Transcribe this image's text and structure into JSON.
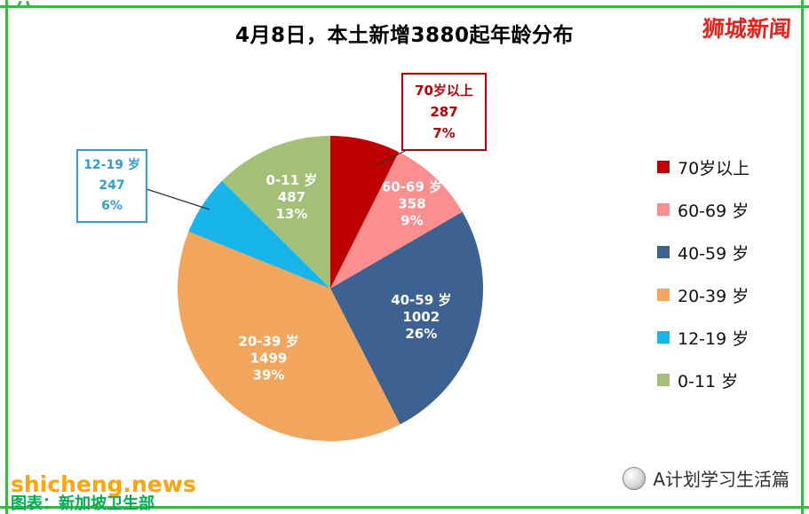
{
  "header": {
    "title": "4月8日，本土新增3880起年龄分布",
    "logo": "狮城新闻"
  },
  "chart_data": {
    "type": "pie",
    "title": "4月8日，本土新增3880起年龄分布",
    "total": 3880,
    "legend_position": "right",
    "slices": [
      {
        "label": "70岁以上",
        "value": 287,
        "percent": "7%",
        "color": "#BE0000"
      },
      {
        "label": "60-69 岁",
        "value": 358,
        "percent": "9%",
        "color": "#FB8F90"
      },
      {
        "label": "40-59 岁",
        "value": 1002,
        "percent": "26%",
        "color": "#3D6191"
      },
      {
        "label": "20-39 岁",
        "value": 1499,
        "percent": "39%",
        "color": "#F2A55C"
      },
      {
        "label": "12-19 岁",
        "value": 247,
        "percent": "6%",
        "color": "#18B5EA"
      },
      {
        "label": "0-11 岁",
        "value": 487,
        "percent": "13%",
        "color": "#A4C077"
      }
    ]
  },
  "footer": {
    "watermark": "shicheng.news",
    "source": "图表：新加坡卫生部",
    "account": "A计划学习生活篇"
  },
  "colors": {
    "frame": "#3EB549",
    "callout_70_border": "#BE0000",
    "callout_12_border": "#2D9FD6",
    "watermark": "#FFA30A",
    "source_text": "#00B050",
    "logo": "#E8221A"
  }
}
